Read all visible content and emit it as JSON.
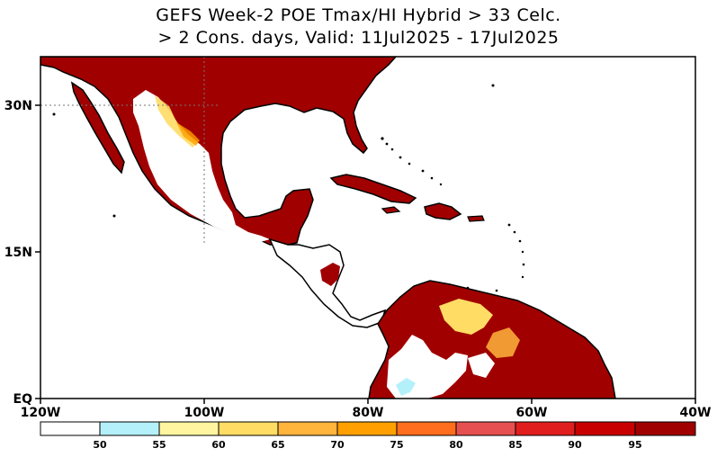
{
  "title": {
    "line1": "GEFS Week-2 POE Tmax/HI Hybrid > 33 Celc.",
    "line2": "> 2 Cons. days, Valid: 11Jul2025 - 17Jul2025"
  },
  "map": {
    "lon_range": [
      -120,
      -40
    ],
    "lat_range": [
      0,
      35
    ],
    "lat_labels": [
      "30N",
      "15N",
      "EQ"
    ],
    "lon_labels": [
      "120W",
      "100W",
      "80W",
      "60W",
      "40W"
    ],
    "ocean_color": "#ffffff",
    "coast_color": "#000000",
    "gridlines": "dotted at 100W and 30N"
  },
  "colorbar": {
    "labels": [
      "50",
      "55",
      "60",
      "65",
      "70",
      "75",
      "80",
      "85",
      "90",
      "95"
    ],
    "colors": [
      "#ffffff",
      "#b4f0fa",
      "#fff5a0",
      "#ffdc64",
      "#ffb43c",
      "#ffa000",
      "#ff6e1e",
      "#e65050",
      "#e11e1e",
      "#c80000",
      "#a00000"
    ]
  }
}
